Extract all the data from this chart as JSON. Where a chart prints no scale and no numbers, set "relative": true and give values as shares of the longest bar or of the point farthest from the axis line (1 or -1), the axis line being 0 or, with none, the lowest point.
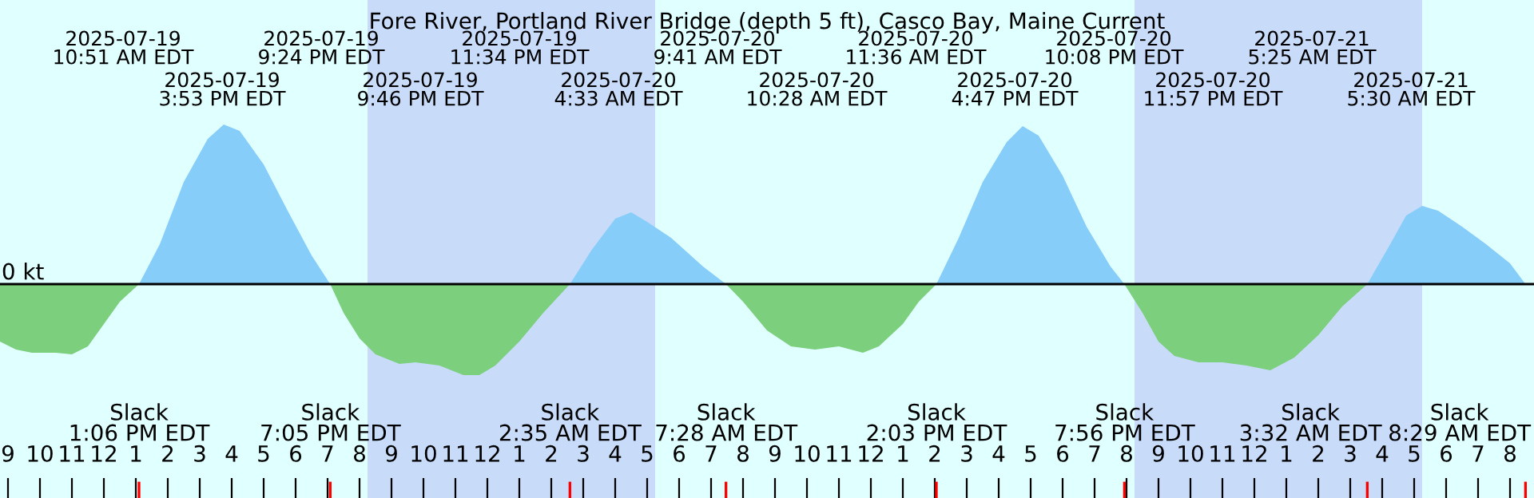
{
  "chart_data": {
    "type": "area",
    "relative": true,
    "title": "Fore River, Portland River Bridge (depth 5 ft), Casco Bay, Maine Current",
    "x": [
      "2025-07-19T08:45",
      "2025-07-19T09:15",
      "2025-07-19T09:45",
      "2025-07-19T10:30",
      "2025-07-19T11:00",
      "2025-07-19T11:30",
      "2025-07-19T12:00",
      "2025-07-19T12:30",
      "2025-07-19T13:06",
      "2025-07-19T13:45",
      "2025-07-19T14:30",
      "2025-07-19T15:15",
      "2025-07-19T15:45",
      "2025-07-19T16:15",
      "2025-07-19T17:00",
      "2025-07-19T17:45",
      "2025-07-19T18:30",
      "2025-07-19T19:05",
      "2025-07-19T19:30",
      "2025-07-19T20:00",
      "2025-07-19T20:30",
      "2025-07-19T21:15",
      "2025-07-19T21:45",
      "2025-07-19T22:30",
      "2025-07-19T23:15",
      "2025-07-19T23:45",
      "2025-07-20T00:15",
      "2025-07-20T01:00",
      "2025-07-20T01:45",
      "2025-07-20T02:35",
      "2025-07-20T03:15",
      "2025-07-20T04:00",
      "2025-07-20T04:30",
      "2025-07-20T05:00",
      "2025-07-20T05:45",
      "2025-07-20T06:45",
      "2025-07-20T07:28",
      "2025-07-20T08:00",
      "2025-07-20T08:45",
      "2025-07-20T09:30",
      "2025-07-20T10:15",
      "2025-07-20T11:00",
      "2025-07-20T11:45",
      "2025-07-20T12:15",
      "2025-07-20T13:00",
      "2025-07-20T13:30",
      "2025-07-20T14:03",
      "2025-07-20T14:45",
      "2025-07-20T15:30",
      "2025-07-20T16:15",
      "2025-07-20T16:45",
      "2025-07-20T17:15",
      "2025-07-20T18:00",
      "2025-07-20T18:45",
      "2025-07-20T19:30",
      "2025-07-20T19:56",
      "2025-07-20T20:30",
      "2025-07-20T21:00",
      "2025-07-20T21:30",
      "2025-07-20T22:15",
      "2025-07-20T23:00",
      "2025-07-20T23:45",
      "2025-07-21T00:30",
      "2025-07-21T01:15",
      "2025-07-21T02:00",
      "2025-07-21T02:45",
      "2025-07-21T03:32",
      "2025-07-21T04:15",
      "2025-07-21T04:45",
      "2025-07-21T05:15",
      "2025-07-21T05:45",
      "2025-07-21T06:30",
      "2025-07-21T07:15",
      "2025-07-21T08:00",
      "2025-07-21T08:29"
    ],
    "series": [
      {
        "color": "#87cdfa",
        "values": [
          null,
          null,
          null,
          null,
          null,
          null,
          null,
          null,
          0,
          0.25,
          0.64,
          0.91,
          1.0,
          0.96,
          0.75,
          0.46,
          0.18,
          0,
          null,
          null,
          null,
          null,
          null,
          null,
          null,
          null,
          null,
          null,
          null,
          0,
          0.21,
          0.41,
          0.45,
          0.39,
          0.29,
          0.11,
          0,
          null,
          null,
          null,
          null,
          null,
          null,
          null,
          null,
          null,
          0,
          0.29,
          0.64,
          0.89,
          0.99,
          0.93,
          0.68,
          0.36,
          0.11,
          0,
          null,
          null,
          null,
          null,
          null,
          null,
          null,
          null,
          null,
          null,
          0,
          0.25,
          0.43,
          0.49,
          0.46,
          0.36,
          0.25,
          0.13,
          0
        ]
      },
      {
        "color": "#7ccf7c",
        "values": [
          -0.36,
          -0.41,
          -0.43,
          -0.43,
          -0.44,
          -0.39,
          -0.25,
          -0.11,
          0,
          null,
          null,
          null,
          null,
          null,
          null,
          null,
          null,
          0,
          -0.18,
          -0.34,
          -0.44,
          -0.5,
          -0.49,
          -0.51,
          -0.57,
          -0.57,
          -0.51,
          -0.36,
          -0.18,
          0,
          null,
          null,
          null,
          null,
          null,
          null,
          0,
          -0.11,
          -0.29,
          -0.39,
          -0.41,
          -0.39,
          -0.43,
          -0.39,
          -0.25,
          -0.11,
          0,
          null,
          null,
          null,
          null,
          null,
          null,
          null,
          null,
          0,
          -0.18,
          -0.36,
          -0.45,
          -0.49,
          -0.49,
          -0.51,
          -0.54,
          -0.46,
          -0.32,
          -0.14,
          0,
          null,
          null,
          null,
          null,
          null,
          null,
          null,
          null
        ]
      }
    ],
    "xlim": [
      "2025-07-19T08:45",
      "2025-07-21T08:45"
    ],
    "xticks": [
      {
        "value": "2025-07-19T09:00",
        "label": "9"
      },
      {
        "value": "2025-07-19T10:00",
        "label": "10"
      },
      {
        "value": "2025-07-19T11:00",
        "label": "11"
      },
      {
        "value": "2025-07-19T12:00",
        "label": "12"
      },
      {
        "value": "2025-07-19T13:00",
        "label": "1"
      },
      {
        "value": "2025-07-19T14:00",
        "label": "2"
      },
      {
        "value": "2025-07-19T15:00",
        "label": "3"
      },
      {
        "value": "2025-07-19T16:00",
        "label": "4"
      },
      {
        "value": "2025-07-19T17:00",
        "label": "5"
      },
      {
        "value": "2025-07-19T18:00",
        "label": "6"
      },
      {
        "value": "2025-07-19T19:00",
        "label": "7"
      },
      {
        "value": "2025-07-19T20:00",
        "label": "8"
      },
      {
        "value": "2025-07-19T21:00",
        "label": "9"
      },
      {
        "value": "2025-07-19T22:00",
        "label": "10"
      },
      {
        "value": "2025-07-19T23:00",
        "label": "11"
      },
      {
        "value": "2025-07-20T00:00",
        "label": "12"
      },
      {
        "value": "2025-07-20T01:00",
        "label": "1"
      },
      {
        "value": "2025-07-20T02:00",
        "label": "2"
      },
      {
        "value": "2025-07-20T03:00",
        "label": "3"
      },
      {
        "value": "2025-07-20T04:00",
        "label": "4"
      },
      {
        "value": "2025-07-20T05:00",
        "label": "5"
      },
      {
        "value": "2025-07-20T06:00",
        "label": "6"
      },
      {
        "value": "2025-07-20T07:00",
        "label": "7"
      },
      {
        "value": "2025-07-20T08:00",
        "label": "8"
      },
      {
        "value": "2025-07-20T09:00",
        "label": "9"
      },
      {
        "value": "2025-07-20T10:00",
        "label": "10"
      },
      {
        "value": "2025-07-20T11:00",
        "label": "11"
      },
      {
        "value": "2025-07-20T12:00",
        "label": "12"
      },
      {
        "value": "2025-07-20T13:00",
        "label": "1"
      },
      {
        "value": "2025-07-20T14:00",
        "label": "2"
      },
      {
        "value": "2025-07-20T15:00",
        "label": "3"
      },
      {
        "value": "2025-07-20T16:00",
        "label": "4"
      },
      {
        "value": "2025-07-20T17:00",
        "label": "5"
      },
      {
        "value": "2025-07-20T18:00",
        "label": "6"
      },
      {
        "value": "2025-07-20T19:00",
        "label": "7"
      },
      {
        "value": "2025-07-20T20:00",
        "label": "8"
      },
      {
        "value": "2025-07-20T21:00",
        "label": "9"
      },
      {
        "value": "2025-07-20T22:00",
        "label": "10"
      },
      {
        "value": "2025-07-20T23:00",
        "label": "11"
      },
      {
        "value": "2025-07-21T00:00",
        "label": "12"
      },
      {
        "value": "2025-07-21T01:00",
        "label": "1"
      },
      {
        "value": "2025-07-21T02:00",
        "label": "2"
      },
      {
        "value": "2025-07-21T03:00",
        "label": "3"
      },
      {
        "value": "2025-07-21T04:00",
        "label": "4"
      },
      {
        "value": "2025-07-21T05:00",
        "label": "5"
      },
      {
        "value": "2025-07-21T06:00",
        "label": "6"
      },
      {
        "value": "2025-07-21T07:00",
        "label": "7"
      },
      {
        "value": "2025-07-21T08:00",
        "label": "8"
      }
    ],
    "ref_lines": [
      {
        "axis": "y",
        "value": 0,
        "label": "0 kt",
        "color": "#000000"
      }
    ],
    "bands": [
      {
        "axis": "x",
        "from": "2025-07-19T20:15",
        "to": "2025-07-20T05:15",
        "color": "#c8dcfa"
      },
      {
        "axis": "x",
        "from": "2025-07-20T20:15",
        "to": "2025-07-21T05:15",
        "color": "#c8dcfa"
      }
    ],
    "annotations": [
      "Slack\n1:06 PM EDT",
      "Slack\n7:05 PM EDT",
      "Slack\n2:35 AM EDT",
      "Slack\n7:28 AM EDT",
      "Slack\n2:03 PM EDT",
      "Slack\n7:56 PM EDT",
      "Slack\n3:32 AM EDT",
      "Slack\n8:29 AM EDT",
      "2025-07-19\n10:51 AM EDT",
      "2025-07-19\n3:53 PM EDT",
      "2025-07-19\n9:24 PM EDT",
      "2025-07-19\n9:46 PM EDT",
      "2025-07-19\n11:34 PM EDT",
      "2025-07-20\n4:33 AM EDT",
      "2025-07-20\n9:41 AM EDT",
      "2025-07-20\n10:28 AM EDT",
      "2025-07-20\n11:36 AM EDT",
      "2025-07-20\n4:47 PM EDT",
      "2025-07-20\n10:08 PM EDT",
      "2025-07-20\n11:57 PM EDT",
      "2025-07-21\n5:25 AM EDT",
      "2025-07-21\n5:30 AM EDT"
    ]
  }
}
